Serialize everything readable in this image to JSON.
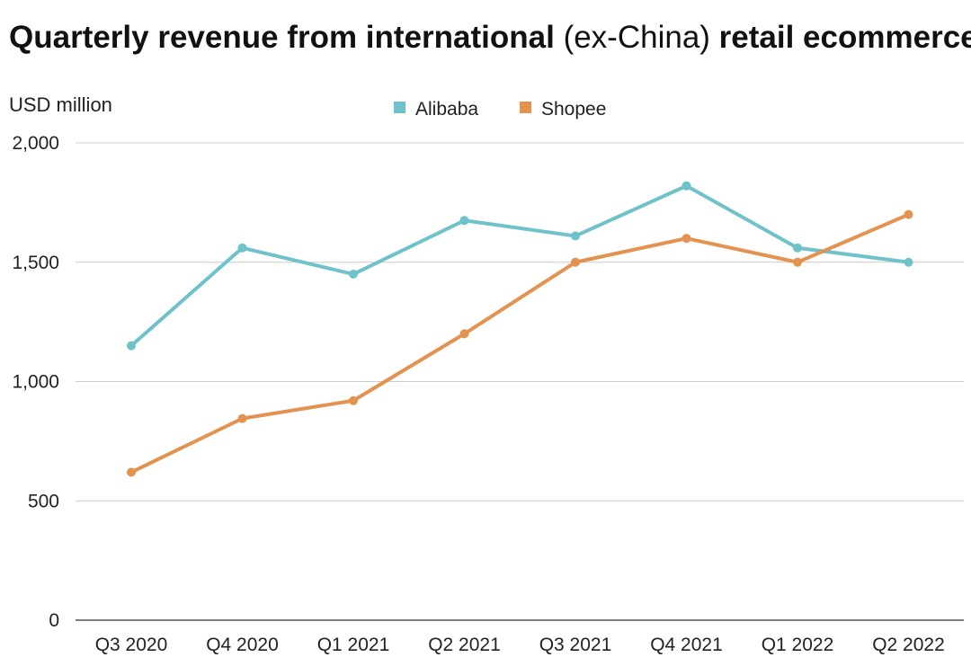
{
  "title": {
    "part1": "Quarterly revenue from international ",
    "part2": "(ex-China)",
    "part3": " retail ecommerce"
  },
  "chart_data": {
    "type": "line",
    "title": "Quarterly revenue from international (ex-China) retail ecommerce",
    "ylabel": "USD million",
    "xlabel": "",
    "categories": [
      "Q3 2020",
      "Q4 2020",
      "Q1 2021",
      "Q2 2021",
      "Q3 2021",
      "Q4 2021",
      "Q1 2022",
      "Q2 2022"
    ],
    "ylim": [
      0,
      2000
    ],
    "yticks": [
      0,
      500,
      1000,
      1500,
      2000
    ],
    "ytick_labels": [
      "0",
      "500",
      "1,000",
      "1,500",
      "2,000"
    ],
    "grid": true,
    "legend_position": "top-center",
    "series": [
      {
        "name": "Alibaba",
        "color": "#6fc2c9",
        "values": [
          1150,
          1560,
          1450,
          1675,
          1610,
          1820,
          1560,
          1500
        ]
      },
      {
        "name": "Shopee",
        "color": "#e3924f",
        "values": [
          620,
          845,
          920,
          1200,
          1500,
          1600,
          1500,
          1700
        ]
      }
    ]
  }
}
